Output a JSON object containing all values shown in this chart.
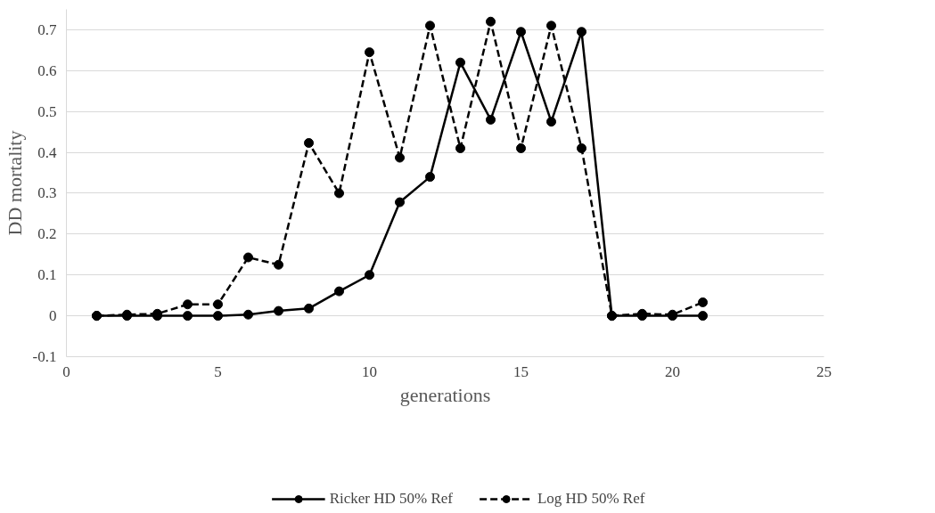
{
  "chart_data": {
    "type": "line",
    "xlabel": "generations",
    "ylabel": "DD mortality",
    "x": [
      1,
      2,
      3,
      4,
      5,
      6,
      7,
      8,
      9,
      10,
      11,
      12,
      13,
      14,
      15,
      16,
      17,
      18,
      19,
      20,
      21
    ],
    "series": [
      {
        "name": "Ricker HD 50% Ref",
        "color": "#000000",
        "line_style": "solid",
        "values": [
          0,
          0,
          0,
          0,
          0,
          0.003,
          0.012,
          0.018,
          0.06,
          0.1,
          0.278,
          0.34,
          0.62,
          0.48,
          0.695,
          0.475,
          0.695,
          0,
          0,
          0,
          0
        ]
      },
      {
        "name": "Log HD 50% Ref",
        "color": "#000000",
        "line_style": "dashed",
        "values": [
          0,
          0.003,
          0.005,
          0.028,
          0.028,
          0.143,
          0.125,
          0.423,
          0.3,
          0.645,
          0.387,
          0.71,
          0.41,
          0.72,
          0.41,
          0.71,
          0.41,
          0,
          0.005,
          0.003,
          0.033
        ]
      }
    ],
    "xlim": [
      0,
      25
    ],
    "xticks": [
      0,
      5,
      10,
      15,
      20,
      25
    ],
    "ylim": [
      -0.1,
      0.75
    ],
    "yticks": [
      -0.1,
      0,
      0.1,
      0.2,
      0.3,
      0.4,
      0.5,
      0.6,
      0.7
    ],
    "grid": "y",
    "legend": "bottom",
    "marker": "circle"
  }
}
